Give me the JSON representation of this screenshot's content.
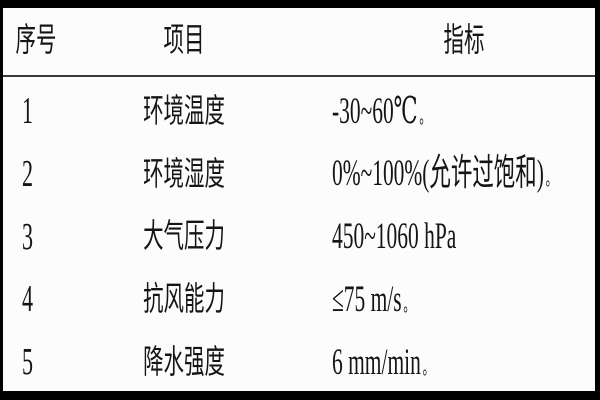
{
  "table": {
    "headers": {
      "no": "序号",
      "item": "项目",
      "indicator": "指标"
    },
    "rows": [
      {
        "no": "1",
        "item": "环境温度",
        "value": "-30~60℃",
        "period": "。"
      },
      {
        "no": "2",
        "item": "环境湿度",
        "value": "0%~100%(允许过饱和)",
        "period": "。"
      },
      {
        "no": "3",
        "item": "大气压力",
        "value": "450~1060 hPa",
        "period": ""
      },
      {
        "no": "4",
        "item": "抗风能力",
        "value": "≤75 m/s",
        "period": "。"
      },
      {
        "no": "5",
        "item": "降水强度",
        "value": "6 mm/min",
        "period": "。"
      }
    ]
  },
  "colors": {
    "border": "#000000",
    "header_rule": "#3a3a3a",
    "text": "#151515",
    "background": "#fcfcfc"
  }
}
